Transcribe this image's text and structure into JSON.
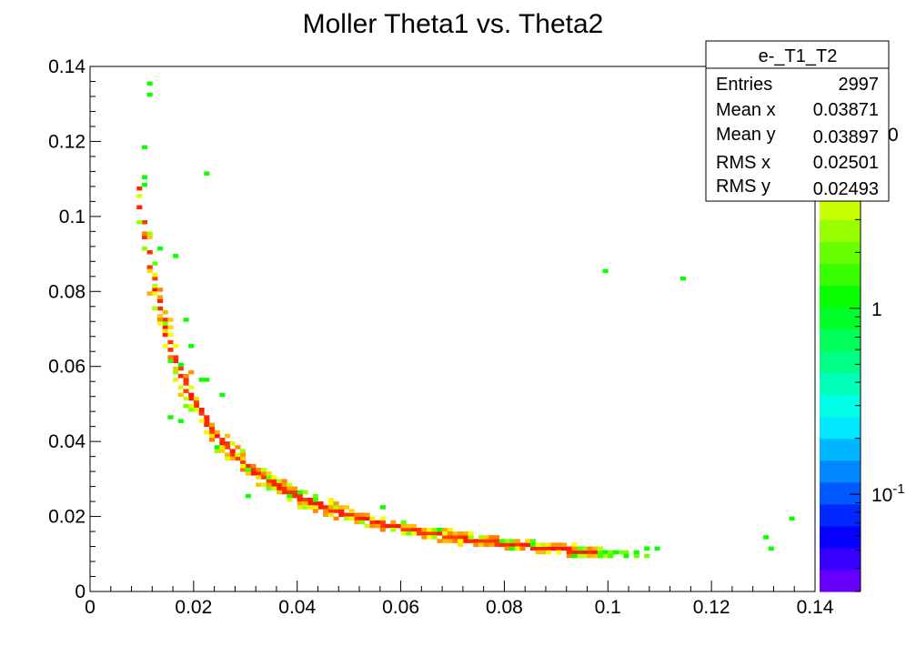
{
  "chart_data": {
    "type": "heatmap",
    "title": "Moller Theta1 vs. Theta2",
    "xlabel": "",
    "ylabel": "",
    "xlim": [
      0,
      0.14
    ],
    "ylim": [
      0,
      0.14
    ],
    "x_ticks": [
      "0",
      "0.02",
      "0.04",
      "0.06",
      "0.08",
      "0.1",
      "0.12",
      "0.14"
    ],
    "y_ticks": [
      "0",
      "0.02",
      "0.04",
      "0.06",
      "0.08",
      "0.1",
      "0.12",
      "0.14"
    ],
    "z_scale": "log",
    "z_ticks": [
      {
        "value": 1,
        "label": "1"
      },
      {
        "value": 0.1,
        "label": "10",
        "exponent": "-1"
      }
    ],
    "z_range": [
      0.03,
      20
    ],
    "z_top_partial_label": "0",
    "grid": false,
    "stats_box": {
      "name": "e-_T1_T2",
      "rows": [
        {
          "label": "Entries",
          "value": "2997"
        },
        {
          "label": "Mean x",
          "value": "0.03871"
        },
        {
          "label": "Mean y",
          "value": "0.03897"
        },
        {
          "label": "RMS x",
          "value": "0.02501"
        },
        {
          "label": "RMS y",
          "value": "0.02493"
        }
      ]
    },
    "relation": "theta1 * theta2 ≈ 0.001",
    "outliers": [
      {
        "x": 0.0115,
        "y": 0.1355
      },
      {
        "x": 0.0115,
        "y": 0.1325
      },
      {
        "x": 0.0105,
        "y": 0.119
      },
      {
        "x": 0.0105,
        "y": 0.1105
      },
      {
        "x": 0.0105,
        "y": 0.108
      },
      {
        "x": 0.0225,
        "y": 0.1115
      },
      {
        "x": 0.0995,
        "y": 0.0855
      },
      {
        "x": 0.1145,
        "y": 0.0835
      },
      {
        "x": 0.0135,
        "y": 0.0915
      },
      {
        "x": 0.0165,
        "y": 0.089
      },
      {
        "x": 0.0255,
        "y": 0.0525
      },
      {
        "x": 0.0225,
        "y": 0.0565
      },
      {
        "x": 0.0215,
        "y": 0.056
      },
      {
        "x": 0.0195,
        "y": 0.065
      },
      {
        "x": 0.0185,
        "y": 0.0725
      },
      {
        "x": 0.0155,
        "y": 0.0465
      },
      {
        "x": 0.0175,
        "y": 0.0455
      },
      {
        "x": 0.0355,
        "y": 0.03
      },
      {
        "x": 0.0305,
        "y": 0.0255
      },
      {
        "x": 0.0505,
        "y": 0.0195
      },
      {
        "x": 0.0565,
        "y": 0.0225
      },
      {
        "x": 0.0585,
        "y": 0.0175
      },
      {
        "x": 0.0715,
        "y": 0.0145
      },
      {
        "x": 0.0745,
        "y": 0.0125
      },
      {
        "x": 0.0875,
        "y": 0.0105
      },
      {
        "x": 0.0935,
        "y": 0.0095
      },
      {
        "x": 0.0975,
        "y": 0.0105
      },
      {
        "x": 0.1015,
        "y": 0.0105
      },
      {
        "x": 0.1035,
        "y": 0.0095
      },
      {
        "x": 0.1055,
        "y": 0.0105
      },
      {
        "x": 0.1075,
        "y": 0.0115
      },
      {
        "x": 0.1095,
        "y": 0.0115
      },
      {
        "x": 0.1305,
        "y": 0.0145
      },
      {
        "x": 0.1315,
        "y": 0.0115
      },
      {
        "x": 0.1355,
        "y": 0.0195
      }
    ]
  }
}
